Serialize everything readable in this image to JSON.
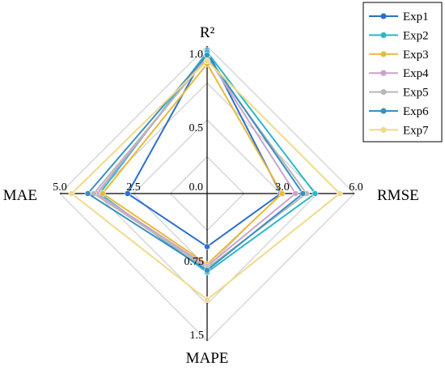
{
  "chart_data": {
    "type": "radar",
    "title": "",
    "axes": [
      {
        "name": "R²",
        "min": 0.0,
        "max": 1.0,
        "ticks": [
          {
            "value": 0.0,
            "label": "0.0"
          },
          {
            "value": 0.5,
            "label": "0.5"
          },
          {
            "value": 1.0,
            "label": "1.0"
          }
        ]
      },
      {
        "name": "RMSE",
        "min": 0.0,
        "max": 6.0,
        "ticks": [
          {
            "value": 3.0,
            "label": "3.0"
          },
          {
            "value": 6.0,
            "label": "6.0"
          }
        ]
      },
      {
        "name": "MAPE",
        "min": 0.0,
        "max": 1.5,
        "ticks": [
          {
            "value": 0.75,
            "label": "0.75"
          },
          {
            "value": 1.5,
            "label": "1.5"
          }
        ]
      },
      {
        "name": "MAE",
        "min": 0.0,
        "max": 5.0,
        "ticks": [
          {
            "value": 2.5,
            "label": "2.5"
          },
          {
            "value": 5.0,
            "label": "5.0"
          }
        ]
      }
    ],
    "grid_rings": 4,
    "legend_position": "top-right",
    "series": [
      {
        "name": "Exp1",
        "color": "#2b6fd0",
        "values": [
          0.97,
          3.0,
          0.54,
          2.7
        ]
      },
      {
        "name": "Exp2",
        "color": "#2bb8c6",
        "values": [
          0.96,
          4.4,
          0.8,
          3.65
        ]
      },
      {
        "name": "Exp3",
        "color": "#e8b93a",
        "values": [
          0.88,
          3.05,
          0.72,
          3.55
        ]
      },
      {
        "name": "Exp4",
        "color": "#c9a3cc",
        "values": [
          0.93,
          3.6,
          0.74,
          3.75
        ]
      },
      {
        "name": "Exp5",
        "color": "#b8b8b8",
        "values": [
          0.92,
          4.05,
          0.76,
          3.85
        ]
      },
      {
        "name": "Exp6",
        "color": "#3b8fc0",
        "values": [
          0.94,
          3.9,
          0.78,
          4.05
        ]
      },
      {
        "name": "Exp7",
        "color": "#f0d98a",
        "values": [
          0.9,
          5.4,
          1.08,
          4.6
        ]
      }
    ]
  }
}
